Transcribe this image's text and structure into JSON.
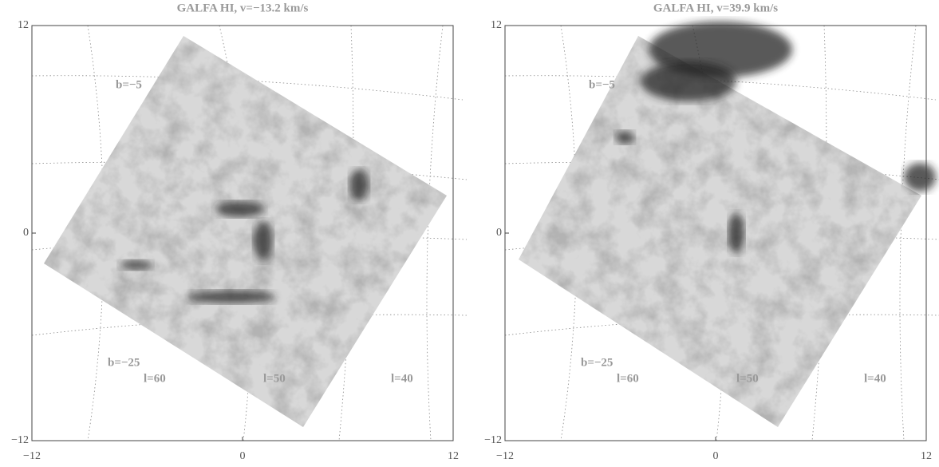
{
  "chart_data": [
    {
      "type": "image",
      "title": "GALFA HI, v=−13.2 km/s",
      "xlim": [
        -12,
        12
      ],
      "ylim": [
        -12,
        12
      ],
      "xticks": [
        {
          "value": -12,
          "label": "−12"
        },
        0,
        12
      ],
      "yticks": [
        {
          "value": -12,
          "label": "−12"
        },
        0,
        12
      ],
      "annotations": [
        "b=−5",
        "b=−25",
        "l=60",
        "l=50",
        "l=40"
      ]
    },
    {
      "type": "image",
      "title": "GALFA HI, v=39.9 km/s",
      "xlim": [
        -12,
        12
      ],
      "ylim": [
        -12,
        12
      ],
      "xticks": [
        {
          "value": -12,
          "label": "−12"
        },
        0,
        12
      ],
      "yticks": [
        {
          "value": -12,
          "label": "−12"
        },
        0,
        12
      ],
      "annotations": [
        "b=−5",
        "b=−25",
        "l=60",
        "l=50",
        "l=40"
      ]
    }
  ]
}
